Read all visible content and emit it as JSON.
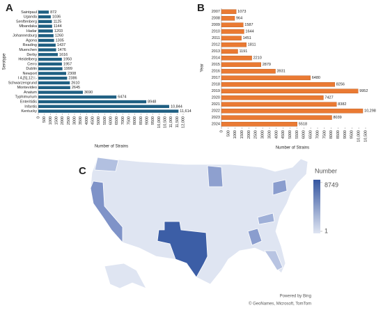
{
  "chart_data": [
    {
      "type": "bar",
      "orientation": "horizontal",
      "panel_label": "A",
      "ylabel": "Serotype",
      "xlabel": "Number of Strains",
      "color": "#1f5f82",
      "categories": [
        "Saintpaul",
        "Uganda",
        "Senftenberg",
        "Mbandaka",
        "Hadar",
        "Johannesburg",
        "Agona",
        "Reading",
        "Muenchen",
        "Derby",
        "Heidelberg",
        "Cerro",
        "Dublin",
        "Newport",
        "I 4,[5],12:i:-",
        "Schwarzengrund",
        "Montevideo",
        "Anatum",
        "Typhimurium",
        "Enteritidis",
        "Infantis",
        "Kentucky"
      ],
      "values": [
        872,
        1036,
        1125,
        1144,
        1203,
        1260,
        1305,
        1437,
        1476,
        1616,
        1950,
        1957,
        1999,
        2308,
        2386,
        2610,
        2645,
        3690,
        6474,
        8948,
        10844,
        11614
      ],
      "value_labels": [
        "872",
        "1036",
        "1125",
        "1144",
        "1203",
        "1260",
        "1305",
        "1437",
        "1476",
        "1616",
        "1950",
        "1957",
        "1999",
        "2308",
        "2386",
        "2610",
        "2645",
        "3690",
        "6474",
        "8948",
        "10,844",
        "11,614"
      ],
      "xlim": [
        0,
        12000
      ],
      "xticks": [
        0,
        500,
        1000,
        1500,
        2000,
        2500,
        3000,
        3500,
        4000,
        4500,
        5000,
        5500,
        6000,
        6500,
        7000,
        7500,
        8000,
        8500,
        9000,
        9500,
        {
          "value": 10000,
          "label": "10,000"
        },
        {
          "value": 10500,
          "label": "10,500"
        },
        {
          "value": 11000,
          "label": "11,000"
        },
        {
          "value": 11500,
          "label": "11,500"
        },
        {
          "value": 12000,
          "label": "12,000"
        }
      ]
    },
    {
      "type": "bar",
      "orientation": "horizontal",
      "panel_label": "B",
      "ylabel": "Year",
      "xlabel": "Number of Strains",
      "color": "#ea7a33",
      "categories": [
        "2007",
        "2008",
        "2009",
        "2010",
        "2011",
        "2012",
        "2013",
        "2014",
        "2015",
        "2016",
        "2017",
        "2018",
        "2019",
        "2020",
        "2021",
        "2022",
        "2023",
        "2024"
      ],
      "values": [
        1073,
        964,
        1587,
        1644,
        1451,
        1811,
        1191,
        2210,
        2879,
        3931,
        6480,
        8256,
        9952,
        7427,
        8382,
        10298,
        8039,
        5518
      ],
      "value_labels": [
        "1073",
        "964",
        "1587",
        "1644",
        "1451",
        "1811",
        "1191",
        "2210",
        "2879",
        "3931",
        "6480",
        "8256",
        "9952",
        "7427",
        "8382",
        "10,298",
        "8039",
        "5518"
      ],
      "xlim": [
        0,
        10500
      ],
      "xticks": [
        0,
        500,
        1000,
        1500,
        2000,
        2500,
        3000,
        3500,
        4000,
        4500,
        5000,
        5500,
        6000,
        6500,
        7000,
        7500,
        8000,
        8500,
        9000,
        9500,
        {
          "value": 10000,
          "label": "10,000"
        },
        {
          "value": 10500,
          "label": "10,500"
        }
      ]
    },
    {
      "type": "map",
      "panel_label": "C",
      "colorbar": {
        "title": "Number",
        "max": 8749,
        "min": 1,
        "low_color": "#dfe5f2",
        "high_color": "#3556a0"
      },
      "attribution": [
        "Powered by Bing",
        "© GeoNames, Microsoft, TomTom"
      ]
    }
  ]
}
